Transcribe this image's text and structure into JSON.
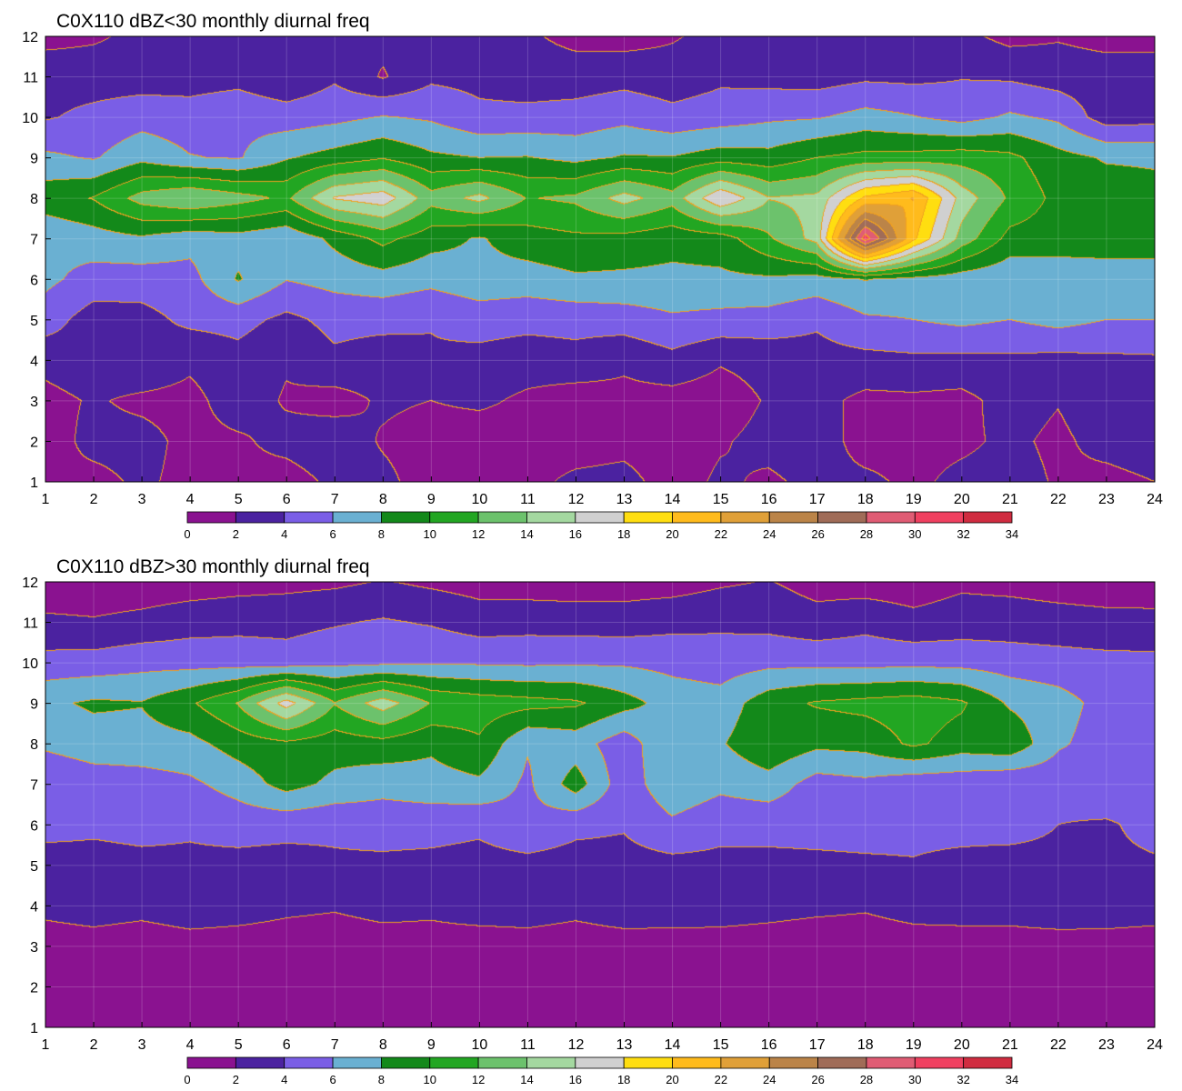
{
  "figure": {
    "background": "#ffffff"
  },
  "palette": [
    "#8a1290",
    "#4b22a0",
    "#7a5ee6",
    "#6ab0d2",
    "#13891a",
    "#22a622",
    "#6cc26c",
    "#a4d8a0",
    "#d0d0d0",
    "#ffde10",
    "#ffbb1c",
    "#e0a038",
    "#bb8448",
    "#a06c58",
    "#e05c74",
    "#f04060",
    "#d02c40"
  ],
  "contour_line_color": "#f0a020",
  "chart_data": [
    {
      "type": "heatmap",
      "title": "C0X110 dBZ<30 monthly diurnal freq",
      "x_ticks": [
        "1",
        "2",
        "3",
        "4",
        "5",
        "6",
        "7",
        "8",
        "9",
        "10",
        "11",
        "12",
        "13",
        "14",
        "15",
        "16",
        "17",
        "18",
        "19",
        "20",
        "21",
        "22",
        "23",
        "24"
      ],
      "y_ticks": [
        "1",
        "2",
        "3",
        "4",
        "5",
        "6",
        "7",
        "8",
        "9",
        "10",
        "11",
        "12"
      ],
      "xlim": [
        1,
        24
      ],
      "ylim": [
        1,
        12
      ],
      "grid": true,
      "legend": "colorbar below plot",
      "colorbar": {
        "levels": [
          "0",
          "2",
          "4",
          "6",
          "8",
          "10",
          "12",
          "14",
          "16",
          "18",
          "20",
          "22",
          "24",
          "26",
          "28",
          "30",
          "32",
          "34"
        ]
      },
      "values": [
        [
          1.9,
          1.5,
          2.3,
          1.5,
          1.6,
          1.2,
          2.4,
          2.5,
          1.1,
          2.0,
          1.5,
          2.4,
          2.6,
          1.2,
          2.3,
          1.7,
          2.5,
          2.4,
          1.6,
          2.5,
          2.8,
          1.8,
          1.4,
          2.0
        ],
        [
          1.2,
          2.5,
          2.6,
          1.5,
          1.7,
          2.6,
          3.2,
          1.8,
          1.1,
          0.8,
          1.1,
          1.1,
          1.4,
          1.0,
          1.8,
          2.6,
          3.0,
          1.2,
          1.4,
          1.6,
          2.4,
          1.6,
          2.7,
          3.2
        ],
        [
          1.4,
          2.2,
          1.6,
          1.4,
          3.0,
          1.8,
          1.2,
          2.3,
          2.0,
          2.4,
          1.6,
          1.0,
          1.4,
          1.2,
          1.0,
          2.2,
          2.6,
          1.5,
          1.6,
          1.4,
          2.8,
          2.1,
          3.2,
          2.4
        ],
        [
          2.6,
          3.3,
          3.6,
          2.4,
          3.3,
          2.2,
          3.6,
          3.0,
          3.8,
          3.4,
          3.0,
          3.3,
          2.4,
          3.4,
          2.2,
          2.7,
          3.3,
          3.4,
          3.6,
          3.5,
          3.6,
          3.4,
          3.6,
          3.7
        ],
        [
          5.0,
          3.0,
          3.3,
          4.5,
          4.7,
          3.5,
          4.6,
          4.6,
          4.1,
          4.8,
          4.6,
          4.7,
          5.0,
          5.7,
          5.4,
          5.2,
          4.3,
          5.7,
          6.0,
          6.5,
          6.0,
          6.7,
          6.0,
          6.0
        ],
        [
          6.5,
          5.2,
          5.0,
          5.3,
          8.2,
          6.1,
          6.7,
          7.2,
          6.6,
          7.4,
          7.1,
          7.7,
          7.6,
          7.5,
          7.6,
          7.7,
          7.3,
          8.1,
          7.5,
          6.9,
          6.4,
          6.8,
          6.9,
          6.6
        ],
        [
          6.3,
          7.1,
          7.7,
          6.7,
          7.2,
          6.4,
          8.5,
          10.6,
          8.8,
          7.8,
          9.1,
          9.6,
          9.3,
          8.7,
          9.0,
          11.7,
          14.8,
          31.2,
          20.5,
          13.2,
          9.3,
          9.0,
          9.1,
          9.4
        ],
        [
          9.2,
          10.1,
          12.8,
          14.0,
          12.8,
          11.6,
          16.2,
          17.2,
          12.8,
          14.6,
          11.9,
          12.4,
          14.8,
          12.8,
          17.9,
          14.1,
          14.5,
          20.4,
          22.1,
          15.2,
          11.7,
          9.4,
          9.1,
          8.7
        ],
        [
          6.4,
          5.8,
          7.4,
          6.1,
          5.8,
          7.8,
          8.8,
          9.8,
          8.4,
          8.0,
          8.1,
          7.4,
          8.2,
          8.1,
          9.0,
          8.7,
          10.0,
          10.6,
          10.7,
          11.1,
          10.5,
          8.7,
          7.8,
          7.7
        ],
        [
          3.8,
          4.5,
          5.2,
          4.9,
          5.5,
          5.0,
          5.4,
          6.1,
          5.7,
          4.5,
          4.6,
          4.8,
          5.4,
          4.6,
          5.0,
          5.6,
          5.8,
          6.7,
          6.1,
          5.2,
          6.3,
          5.6,
          3.0,
          3.2
        ],
        [
          3.3,
          3.1,
          3.0,
          3.1,
          3.3,
          2.3,
          3.7,
          1.8,
          3.6,
          3.4,
          2.9,
          3.0,
          3.3,
          2.9,
          3.6,
          3.3,
          3.1,
          3.6,
          3.5,
          3.9,
          3.7,
          3.1,
          3.0,
          3.2
        ],
        [
          1.3,
          1.7,
          2.5,
          2.4,
          2.9,
          2.8,
          3.0,
          2.6,
          3.2,
          2.6,
          2.3,
          1.4,
          1.2,
          1.8,
          2.6,
          2.2,
          2.3,
          2.6,
          2.9,
          2.5,
          1.4,
          1.8,
          1.3,
          1.2
        ]
      ]
    },
    {
      "type": "heatmap",
      "title": "C0X110 dBZ>30 monthly diurnal freq",
      "x_ticks": [
        "1",
        "2",
        "3",
        "4",
        "5",
        "6",
        "7",
        "8",
        "9",
        "10",
        "11",
        "12",
        "13",
        "14",
        "15",
        "16",
        "17",
        "18",
        "19",
        "20",
        "21",
        "22",
        "23",
        "24"
      ],
      "y_ticks": [
        "1",
        "2",
        "3",
        "4",
        "5",
        "6",
        "7",
        "8",
        "9",
        "10",
        "11",
        "12"
      ],
      "xlim": [
        1,
        24
      ],
      "ylim": [
        1,
        12
      ],
      "grid": true,
      "legend": "colorbar below plot",
      "colorbar": {
        "levels": [
          "0",
          "2",
          "4",
          "6",
          "8",
          "10",
          "12",
          "14",
          "16",
          "18",
          "20",
          "22",
          "24",
          "26",
          "28",
          "30",
          "32",
          "34"
        ]
      },
      "values": [
        [
          0.3,
          0.3,
          0.4,
          0.3,
          0.4,
          0.4,
          0.3,
          0.4,
          0.5,
          0.3,
          0.4,
          0.3,
          0.4,
          0.3,
          0.4,
          0.5,
          0.4,
          0.3,
          0.4,
          0.3,
          0.4,
          0.3,
          0.4,
          0.3
        ],
        [
          0.6,
          0.5,
          0.7,
          0.6,
          0.5,
          0.6,
          0.7,
          0.5,
          0.6,
          0.7,
          0.5,
          0.6,
          0.7,
          0.5,
          0.6,
          0.7,
          0.5,
          0.6,
          0.5,
          0.7,
          0.6,
          0.5,
          0.6,
          0.5
        ],
        [
          1.1,
          1.2,
          1.0,
          1.3,
          1.2,
          1.1,
          1.0,
          1.2,
          1.3,
          1.1,
          1.2,
          1.0,
          1.1,
          1.2,
          1.3,
          1.2,
          1.0,
          1.1,
          1.3,
          1.0,
          1.2,
          1.1,
          1.2,
          1.0
        ],
        [
          2.5,
          2.9,
          2.6,
          3.0,
          2.8,
          2.4,
          2.2,
          2.6,
          2.4,
          2.9,
          3.0,
          2.6,
          3.2,
          3.0,
          2.8,
          2.6,
          2.4,
          2.2,
          2.6,
          3.0,
          2.8,
          3.3,
          3.1,
          3.0
        ],
        [
          3.0,
          3.3,
          3.5,
          3.6,
          3.4,
          3.3,
          3.7,
          3.6,
          3.5,
          3.3,
          3.4,
          3.2,
          3.3,
          3.4,
          3.5,
          3.6,
          3.7,
          3.8,
          3.9,
          3.6,
          3.4,
          3.6,
          3.7,
          3.8
        ],
        [
          4.8,
          4.4,
          4.6,
          4.3,
          4.8,
          4.6,
          4.4,
          4.8,
          4.7,
          4.4,
          5.5,
          4.5,
          4.2,
          5.6,
          4.6,
          4.5,
          4.5,
          4.5,
          4.4,
          4.5,
          4.6,
          4.0,
          3.8,
          4.5
        ],
        [
          4.2,
          4.9,
          5.1,
          5.6,
          6.8,
          8.8,
          7.5,
          6.7,
          7.2,
          7.6,
          5.6,
          9.0,
          4.8,
          7.5,
          6.5,
          7.2,
          5.1,
          5.5,
          4.6,
          4.6,
          4.1,
          4.6,
          5.3,
          4.6
        ],
        [
          6.4,
          7.1,
          7.2,
          7.4,
          8.9,
          9.6,
          8.9,
          9.3,
          8.4,
          9.7,
          6.2,
          6.9,
          4.8,
          8.0,
          7.8,
          9.6,
          8.5,
          8.7,
          10.4,
          9.1,
          9.6,
          6.3,
          5.1,
          5.2
        ],
        [
          7.6,
          8.3,
          8.1,
          9.7,
          12.1,
          16.9,
          12.1,
          15.1,
          11.9,
          11.1,
          10.7,
          10.3,
          8.8,
          7.1,
          6.8,
          9.2,
          10.2,
          10.6,
          11.0,
          10.3,
          7.7,
          6.8,
          5.3,
          5.4
        ],
        [
          4.7,
          4.8,
          5.3,
          5.2,
          5.1,
          4.8,
          5.4,
          5.5,
          5.8,
          5.7,
          5.6,
          5.7,
          5.7,
          5.4,
          5.0,
          5.4,
          5.4,
          5.3,
          5.4,
          5.3,
          5.0,
          4.8,
          4.6,
          4.5
        ],
        [
          2.4,
          2.2,
          2.6,
          3.2,
          3.4,
          3.4,
          3.8,
          4.2,
          3.8,
          3.0,
          3.2,
          3.1,
          3.0,
          3.4,
          3.6,
          3.4,
          2.8,
          3.4,
          2.6,
          3.0,
          3.0,
          2.8,
          2.6,
          2.6
        ],
        [
          0.6,
          0.6,
          0.7,
          0.9,
          1.2,
          1.4,
          1.6,
          2.1,
          1.6,
          1.2,
          1.0,
          0.9,
          1.0,
          1.1,
          1.7,
          2.1,
          1.2,
          1.0,
          0.9,
          1.6,
          1.4,
          1.1,
          0.9,
          0.8
        ]
      ]
    }
  ]
}
